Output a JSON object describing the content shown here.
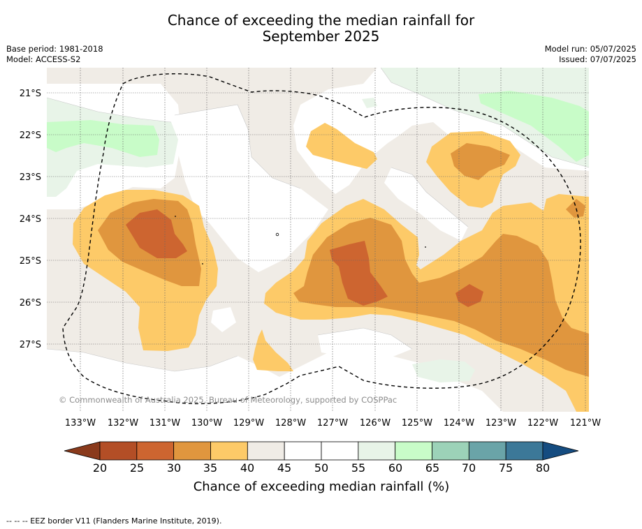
{
  "header": {
    "title_line1": "Chance of exceeding the median rainfall for",
    "title_line2": "September 2025",
    "base_period": "Base period: 1981-2018",
    "model": "Model: ACCESS-S2",
    "model_run": "Model run: 05/07/2025",
    "issued": "Issued: 07/07/2025"
  },
  "map": {
    "lat_labels": [
      "21°S",
      "22°S",
      "23°S",
      "24°S",
      "25°S",
      "26°S",
      "27°S"
    ],
    "lon_labels": [
      "133°W",
      "132°W",
      "131°W",
      "130°W",
      "129°W",
      "128°W",
      "127°W",
      "126°W",
      "125°W",
      "124°W",
      "123°W",
      "122°W",
      "121°W"
    ],
    "copyright": "© Commonwealth of Australia 2025, Bureau of Meteorology, supported by COSPPac",
    "eez_style": "dashed"
  },
  "colorbar": {
    "ticks": [
      "20",
      "25",
      "30",
      "35",
      "40",
      "45",
      "50",
      "55",
      "60",
      "65",
      "70",
      "75",
      "80"
    ],
    "label": "Chance of exceeding median rainfall (%)",
    "colors": [
      "#8a3a1c",
      "#b34e26",
      "#cd6530",
      "#e0963e",
      "#fdca68",
      "#f0ece6",
      "#ffffff",
      "#ffffff",
      "#e8f4e8",
      "#c8fcc8",
      "#9cd2b8",
      "#6aa4a8",
      "#3c7898",
      "#154c80"
    ]
  },
  "footer": {
    "legend": "--  --  -- EEZ border V11 (Flanders Marine Institute, 2019)."
  }
}
